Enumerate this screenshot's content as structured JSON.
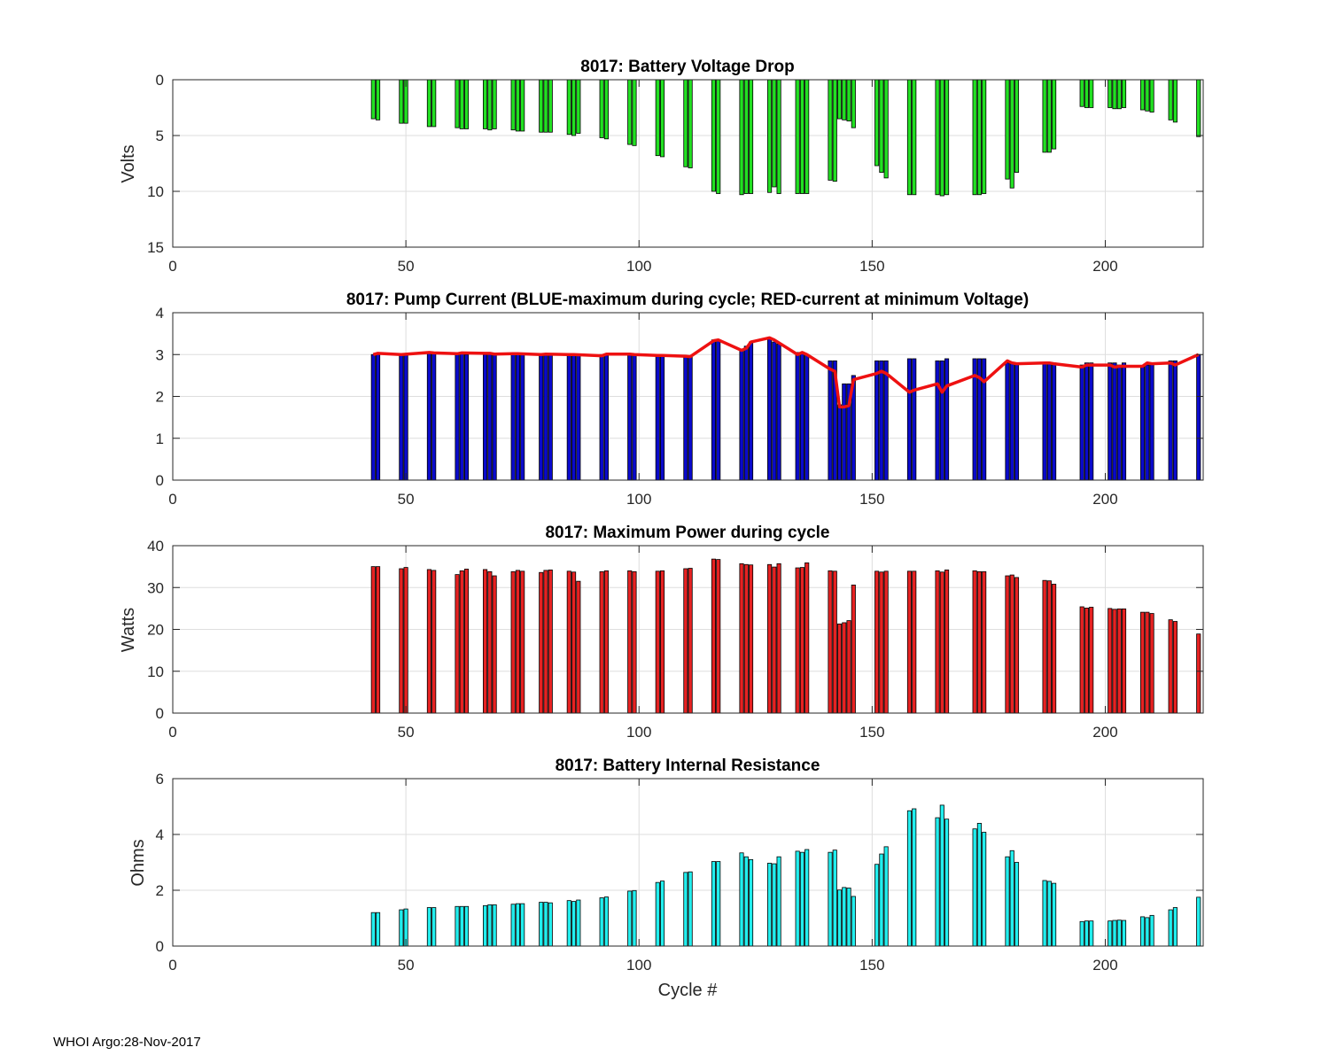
{
  "footer": "WHOI Argo:28-Nov-2017",
  "colors": {
    "voltage": "#22e022",
    "current": "#0a0acc",
    "current_line": "#ee1111",
    "power": "#e62222",
    "resistance": "#22eeee"
  },
  "chart_data": [
    {
      "type": "bar",
      "title": "8017: Battery Voltage Drop",
      "ylabel": "Volts",
      "xlabel": "",
      "xlim": [
        0,
        221
      ],
      "ylim": [
        0,
        15
      ],
      "y_reversed": true,
      "xticks": [
        0,
        50,
        100,
        150,
        200
      ],
      "yticks": [
        0,
        5,
        10,
        15
      ],
      "x": [
        43,
        44,
        49,
        50,
        55,
        56,
        61,
        62,
        63,
        67,
        68,
        69,
        73,
        74,
        75,
        79,
        80,
        81,
        85,
        86,
        87,
        92,
        93,
        98,
        99,
        104,
        105,
        110,
        111,
        116,
        117,
        122,
        123,
        124,
        128,
        129,
        130,
        134,
        135,
        136,
        141,
        142,
        143,
        144,
        145,
        146,
        151,
        152,
        153,
        158,
        159,
        164,
        165,
        166,
        172,
        173,
        174,
        179,
        180,
        181,
        187,
        188,
        189,
        195,
        196,
        197,
        201,
        202,
        203,
        204,
        208,
        209,
        210,
        214,
        215,
        220
      ],
      "values": [
        3.5,
        3.6,
        3.9,
        3.9,
        4.2,
        4.2,
        4.3,
        4.4,
        4.4,
        4.4,
        4.5,
        4.4,
        4.5,
        4.6,
        4.6,
        4.7,
        4.7,
        4.7,
        4.9,
        5.0,
        4.8,
        5.2,
        5.3,
        5.8,
        5.9,
        6.8,
        6.9,
        7.8,
        7.9,
        10.0,
        10.2,
        10.3,
        10.2,
        10.2,
        10.1,
        9.6,
        10.2,
        10.2,
        10.2,
        10.2,
        9.0,
        9.1,
        3.5,
        3.6,
        3.7,
        4.3,
        7.7,
        8.3,
        8.8,
        10.3,
        10.3,
        10.3,
        10.4,
        10.3,
        10.3,
        10.3,
        10.2,
        8.9,
        9.7,
        8.3,
        6.5,
        6.5,
        6.2,
        2.4,
        2.5,
        2.5,
        2.5,
        2.6,
        2.6,
        2.5,
        2.7,
        2.8,
        2.9,
        3.6,
        3.8,
        5.1
      ]
    },
    {
      "type": "bar",
      "title": "8017: Pump Current (BLUE-maximum during cycle; RED-current at minimum Voltage)",
      "ylabel": "",
      "xlabel": "",
      "xlim": [
        0,
        221
      ],
      "ylim": [
        0,
        4
      ],
      "xticks": [
        0,
        50,
        100,
        150,
        200
      ],
      "yticks": [
        0,
        1,
        2,
        3,
        4
      ],
      "x": [
        43,
        44,
        49,
        50,
        55,
        56,
        61,
        62,
        63,
        67,
        68,
        69,
        73,
        74,
        75,
        79,
        80,
        81,
        85,
        86,
        87,
        92,
        93,
        98,
        99,
        104,
        105,
        110,
        111,
        116,
        117,
        122,
        123,
        124,
        128,
        129,
        130,
        134,
        135,
        136,
        141,
        142,
        143,
        144,
        145,
        146,
        151,
        152,
        153,
        158,
        159,
        164,
        165,
        166,
        172,
        173,
        174,
        179,
        180,
        181,
        187,
        188,
        189,
        195,
        196,
        197,
        201,
        202,
        203,
        204,
        208,
        209,
        210,
        214,
        215,
        220
      ],
      "values": [
        3.0,
        3.0,
        3.0,
        3.0,
        3.05,
        3.05,
        3.0,
        3.05,
        3.0,
        3.0,
        3.05,
        3.0,
        3.0,
        3.0,
        3.0,
        3.0,
        3.0,
        3.0,
        3.0,
        3.0,
        3.0,
        3.0,
        3.0,
        3.0,
        3.0,
        2.95,
        2.95,
        2.95,
        2.95,
        3.35,
        3.35,
        3.1,
        3.2,
        3.3,
        3.4,
        3.3,
        3.25,
        3.05,
        3.05,
        3.0,
        2.85,
        2.85,
        1.8,
        2.3,
        2.3,
        2.5,
        2.85,
        2.85,
        2.85,
        2.9,
        2.9,
        2.85,
        2.85,
        2.9,
        2.9,
        2.9,
        2.9,
        2.8,
        2.8,
        2.8,
        2.8,
        2.8,
        2.8,
        2.75,
        2.8,
        2.8,
        2.8,
        2.8,
        2.75,
        2.8,
        2.7,
        2.75,
        2.8,
        2.85,
        2.85,
        3.0
      ],
      "line": {
        "name": "current at minimum Voltage",
        "x": [
          43,
          44,
          49,
          55,
          56,
          61,
          62,
          67,
          68,
          69,
          73,
          74,
          79,
          80,
          85,
          86,
          92,
          93,
          98,
          99,
          104,
          105,
          110,
          111,
          116,
          117,
          122,
          123,
          124,
          128,
          129,
          134,
          135,
          136,
          141,
          142,
          143,
          144,
          145,
          146,
          151,
          152,
          153,
          158,
          159,
          164,
          165,
          166,
          172,
          173,
          174,
          179,
          180,
          181,
          187,
          188,
          189,
          195,
          196,
          197,
          201,
          202,
          203,
          204,
          208,
          209,
          210,
          214,
          215,
          220
        ],
        "y": [
          3.0,
          3.03,
          3.0,
          3.05,
          3.04,
          3.02,
          3.04,
          3.03,
          3.03,
          3.01,
          3.02,
          3.02,
          3.0,
          3.01,
          3.0,
          3.0,
          2.97,
          3.01,
          3.01,
          3.0,
          2.98,
          2.98,
          2.96,
          2.95,
          3.33,
          3.35,
          3.1,
          3.15,
          3.3,
          3.4,
          3.35,
          3.0,
          3.05,
          3.0,
          2.65,
          2.6,
          1.75,
          1.75,
          1.78,
          2.4,
          2.55,
          2.6,
          2.55,
          2.1,
          2.15,
          2.3,
          2.1,
          2.25,
          2.5,
          2.45,
          2.35,
          2.85,
          2.8,
          2.78,
          2.8,
          2.8,
          2.78,
          2.7,
          2.75,
          2.75,
          2.75,
          2.7,
          2.72,
          2.72,
          2.72,
          2.8,
          2.78,
          2.8,
          2.75,
          3.0
        ]
      }
    },
    {
      "type": "bar",
      "title": "8017: Maximum Power during cycle",
      "ylabel": "Watts",
      "xlabel": "",
      "xlim": [
        0,
        221
      ],
      "ylim": [
        0,
        40
      ],
      "xticks": [
        0,
        50,
        100,
        150,
        200
      ],
      "yticks": [
        0,
        10,
        20,
        30,
        40
      ],
      "x": [
        43,
        44,
        49,
        50,
        55,
        56,
        61,
        62,
        63,
        67,
        68,
        69,
        73,
        74,
        75,
        79,
        80,
        81,
        85,
        86,
        87,
        92,
        93,
        98,
        99,
        104,
        105,
        110,
        111,
        116,
        117,
        122,
        123,
        124,
        128,
        129,
        130,
        134,
        135,
        136,
        141,
        142,
        143,
        144,
        145,
        146,
        151,
        152,
        153,
        158,
        159,
        164,
        165,
        166,
        172,
        173,
        174,
        179,
        180,
        181,
        187,
        188,
        189,
        195,
        196,
        197,
        201,
        202,
        203,
        204,
        208,
        209,
        210,
        214,
        215,
        220
      ],
      "values": [
        35.0,
        35.0,
        34.5,
        34.8,
        34.3,
        34.1,
        33.1,
        34.0,
        34.4,
        34.3,
        33.8,
        32.8,
        33.8,
        34.1,
        33.9,
        33.6,
        34.1,
        34.2,
        33.9,
        33.7,
        31.5,
        33.8,
        34.0,
        34.0,
        33.8,
        33.9,
        34.0,
        34.5,
        34.6,
        36.8,
        36.7,
        35.7,
        35.5,
        35.4,
        35.5,
        34.9,
        35.7,
        34.7,
        34.8,
        35.9,
        34.0,
        33.9,
        21.3,
        21.6,
        22.1,
        30.6,
        33.9,
        33.7,
        33.9,
        33.9,
        33.9,
        34.0,
        33.7,
        34.2,
        34.0,
        33.8,
        33.8,
        32.8,
        33.0,
        32.4,
        31.7,
        31.6,
        30.8,
        25.4,
        25.1,
        25.3,
        25.0,
        24.8,
        24.9,
        24.9,
        24.1,
        24.1,
        23.8,
        22.3,
        21.9,
        18.9
      ]
    },
    {
      "type": "bar",
      "title": "8017: Battery Internal Resistance",
      "ylabel": "Ohms",
      "xlabel": "Cycle #",
      "xlim": [
        0,
        221
      ],
      "ylim": [
        0,
        6
      ],
      "xticks": [
        0,
        50,
        100,
        150,
        200
      ],
      "yticks": [
        0,
        2,
        4,
        6
      ],
      "x": [
        43,
        44,
        49,
        50,
        55,
        56,
        61,
        62,
        63,
        67,
        68,
        69,
        73,
        74,
        75,
        79,
        80,
        81,
        85,
        86,
        87,
        92,
        93,
        98,
        99,
        104,
        105,
        110,
        111,
        116,
        117,
        122,
        123,
        124,
        128,
        129,
        130,
        134,
        135,
        136,
        141,
        142,
        143,
        144,
        145,
        146,
        151,
        152,
        153,
        158,
        159,
        164,
        165,
        166,
        172,
        173,
        174,
        179,
        180,
        181,
        187,
        188,
        189,
        195,
        196,
        197,
        201,
        202,
        203,
        204,
        208,
        209,
        210,
        214,
        215,
        220
      ],
      "values": [
        1.2,
        1.2,
        1.3,
        1.33,
        1.38,
        1.38,
        1.42,
        1.42,
        1.42,
        1.45,
        1.48,
        1.48,
        1.5,
        1.52,
        1.52,
        1.57,
        1.57,
        1.55,
        1.63,
        1.6,
        1.65,
        1.73,
        1.76,
        1.97,
        1.99,
        2.28,
        2.33,
        2.64,
        2.66,
        3.03,
        3.03,
        3.34,
        3.2,
        3.1,
        2.97,
        2.95,
        3.2,
        3.4,
        3.36,
        3.46,
        3.36,
        3.44,
        2.01,
        2.1,
        2.08,
        1.78,
        2.93,
        3.3,
        3.56,
        4.85,
        4.92,
        4.6,
        5.05,
        4.55,
        4.2,
        4.4,
        4.08,
        3.2,
        3.42,
        3.0,
        2.35,
        2.32,
        2.25,
        0.88,
        0.9,
        0.9,
        0.9,
        0.92,
        0.93,
        0.92,
        1.05,
        1.02,
        1.1,
        1.3,
        1.38,
        1.75
      ]
    }
  ]
}
